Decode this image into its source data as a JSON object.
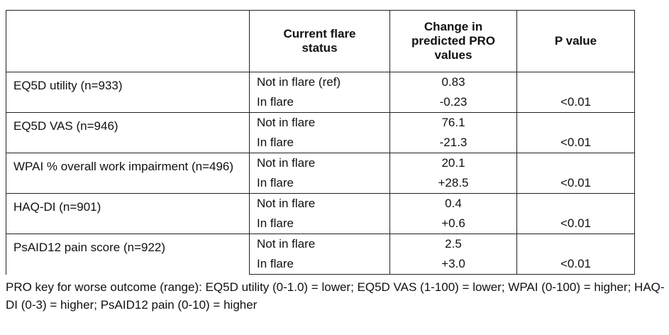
{
  "table": {
    "header": [
      "Current flare status",
      "Change in predicted PRO values",
      "P value"
    ],
    "rows": [
      {
        "label": "EQ5D utility (n=933)",
        "ref": {
          "status": "Not in flare (ref)",
          "change": "0.83"
        },
        "flare": {
          "status": "In flare",
          "change": "-0.23",
          "p": "<0.01"
        }
      },
      {
        "label": "EQ5D VAS (n=946)",
        "ref": {
          "status": "Not in flare",
          "change": "76.1"
        },
        "flare": {
          "status": "In flare",
          "change": "-21.3",
          "p": "<0.01"
        }
      },
      {
        "label": "WPAI % overall work impairment (n=496)",
        "ref": {
          "status": "Not in flare",
          "change": "20.1"
        },
        "flare": {
          "status": "In flare",
          "change": "+28.5",
          "p": "<0.01"
        }
      },
      {
        "label": "HAQ-DI (n=901)",
        "ref": {
          "status": "Not in flare",
          "change": "0.4"
        },
        "flare": {
          "status": "In flare",
          "change": "+0.6",
          "p": "<0.01"
        }
      },
      {
        "label": "PsAID12 pain score (n=922)",
        "ref": {
          "status": "Not in flare",
          "change": "2.5"
        },
        "flare": {
          "status": "In flare",
          "change": "+3.0",
          "p": "<0.01"
        }
      }
    ]
  },
  "footnote": "PRO key for worse outcome (range): EQ5D utility (0-1.0) = lower; EQ5D VAS (1-100) = lower; WPAI (0-100) = higher; HAQ-DI (0-3) = higher; PsAID12 pain (0-10) = higher"
}
